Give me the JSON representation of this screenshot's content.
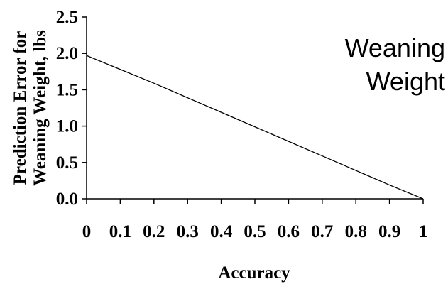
{
  "chart_data": {
    "type": "line",
    "xlabel": "Accuracy",
    "ylabel_lines": [
      "Prediction Error for",
      "Weaning Weight, lbs"
    ],
    "annotation_lines": [
      "Weaning",
      "Weight"
    ],
    "xlim": [
      0,
      1
    ],
    "ylim": [
      0,
      2.5
    ],
    "x_ticks": [
      "0",
      "0.1",
      "0.2",
      "0.3",
      "0.4",
      "0.5",
      "0.6",
      "0.7",
      "0.8",
      "0.9",
      "1"
    ],
    "y_ticks": [
      "0.0",
      "0.5",
      "1.0",
      "1.5",
      "2.0",
      "2.5"
    ],
    "grid": false,
    "series": [
      {
        "color": "#000000",
        "x": [
          0,
          0.1,
          0.2,
          0.3,
          0.4,
          0.5,
          0.6,
          0.7,
          0.8,
          0.9,
          1.0
        ],
        "y": [
          1.97,
          1.78,
          1.59,
          1.39,
          1.19,
          0.99,
          0.79,
          0.59,
          0.39,
          0.19,
          0.0
        ]
      }
    ]
  }
}
